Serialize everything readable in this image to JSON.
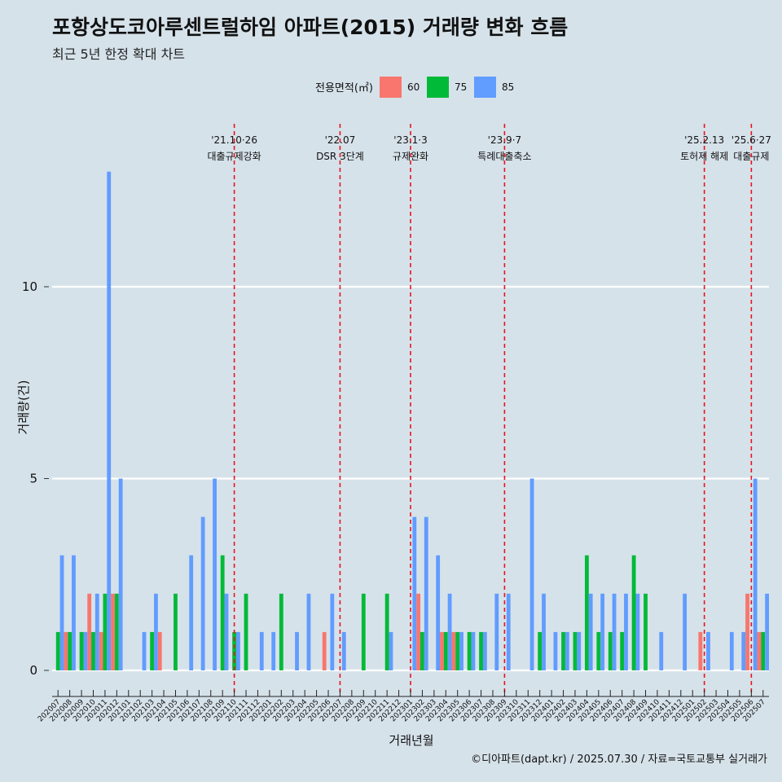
{
  "title": "포항상도코아루센트럴하임 아파트(2015) 거래량 변화 흐름",
  "subtitle": "최근 5년 한정 확대 차트",
  "caption": "©디아파트(dapt.kr) / 2025.07.30 / 자료=국토교통부 실거래가",
  "chart_data": {
    "type": "bar",
    "xlabel": "거래년월",
    "ylabel": "거래량(건)",
    "ylim": [
      0,
      13
    ],
    "yticks": [
      0,
      5,
      10
    ],
    "grid": true,
    "legend": {
      "title": "전용면적(㎡)",
      "position": "top",
      "items": [
        {
          "name": "60",
          "color": "#f8766d"
        },
        {
          "name": "75",
          "color": "#00ba38"
        },
        {
          "name": "85",
          "color": "#619cff"
        }
      ]
    },
    "categories": [
      "202007",
      "202008",
      "202009",
      "202010",
      "202011",
      "202012",
      "202101",
      "202102",
      "202103",
      "202104",
      "202105",
      "202106",
      "202107",
      "202108",
      "202109",
      "202110",
      "202111",
      "202112",
      "202201",
      "202202",
      "202203",
      "202204",
      "202205",
      "202206",
      "202207",
      "202208",
      "202209",
      "202210",
      "202211",
      "202212",
      "202301",
      "202302",
      "202303",
      "202304",
      "202305",
      "202306",
      "202307",
      "202308",
      "202309",
      "202310",
      "202311",
      "202312",
      "202401",
      "202402",
      "202403",
      "202404",
      "202405",
      "202406",
      "202407",
      "202408",
      "202409",
      "202410",
      "202411",
      "202412",
      "202501",
      "202502",
      "202503",
      "202504",
      "202505",
      "202506",
      "202507"
    ],
    "series": [
      {
        "name": "60",
        "color": "#f8766d",
        "values": [
          0,
          1,
          0,
          2,
          1,
          2,
          0,
          0,
          0,
          1,
          0,
          0,
          0,
          0,
          0,
          0,
          0,
          0,
          0,
          0,
          0,
          0,
          0,
          1,
          0,
          0,
          0,
          0,
          0,
          0,
          0,
          2,
          0,
          1,
          1,
          0,
          0,
          0,
          0,
          0,
          0,
          0,
          0,
          0,
          0,
          0,
          0,
          0,
          0,
          0,
          0,
          0,
          0,
          0,
          0,
          1,
          0,
          0,
          0,
          2,
          1
        ]
      },
      {
        "name": "75",
        "color": "#00ba38",
        "values": [
          1,
          1,
          1,
          1,
          2,
          2,
          0,
          0,
          1,
          0,
          2,
          0,
          0,
          0,
          3,
          1,
          2,
          0,
          0,
          2,
          0,
          0,
          0,
          0,
          0,
          0,
          2,
          0,
          2,
          0,
          0,
          1,
          0,
          1,
          1,
          1,
          1,
          0,
          0,
          0,
          0,
          1,
          0,
          1,
          1,
          3,
          1,
          1,
          1,
          3,
          2,
          0,
          0,
          0,
          0,
          0,
          0,
          0,
          0,
          0,
          1
        ]
      },
      {
        "name": "85",
        "color": "#619cff",
        "values": [
          3,
          3,
          1,
          2,
          13,
          5,
          0,
          1,
          2,
          0,
          0,
          3,
          4,
          5,
          2,
          1,
          0,
          1,
          1,
          0,
          1,
          2,
          0,
          2,
          1,
          0,
          0,
          0,
          1,
          0,
          4,
          4,
          3,
          2,
          1,
          1,
          1,
          2,
          2,
          0,
          5,
          2,
          1,
          1,
          1,
          2,
          2,
          2,
          2,
          2,
          0,
          1,
          0,
          2,
          0,
          1,
          0,
          1,
          1,
          5,
          2
        ]
      }
    ],
    "events": [
      {
        "index": 15,
        "date": "'21.10·26",
        "label": "대출규제강화"
      },
      {
        "index": 24,
        "date": "'22.07",
        "label": "DSR 3단계"
      },
      {
        "index": 30,
        "date": "'23.1·3",
        "label": "규제완화"
      },
      {
        "index": 38,
        "date": "'23.9·7",
        "label": "특례대출축소"
      },
      {
        "index": 55,
        "date": "'25.2.13",
        "label": "토허제 해제"
      },
      {
        "index": 59,
        "date": "'25.6·27",
        "label": "대출규제"
      }
    ]
  }
}
